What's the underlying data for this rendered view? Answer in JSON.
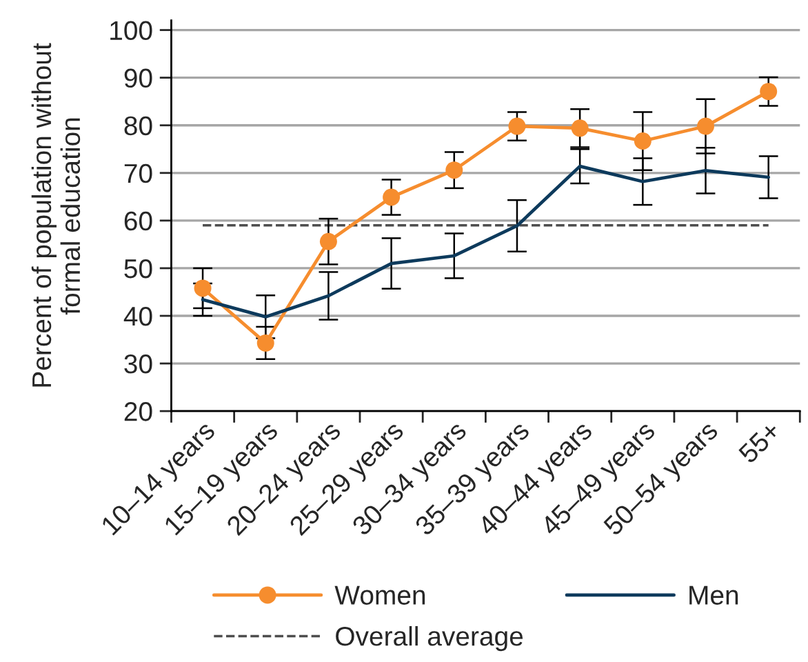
{
  "chart_data": {
    "type": "line",
    "ylabel": "Percent of population without\nformal education",
    "categories": [
      "10–14 years",
      "15–19 years",
      "20–24 years",
      "25–29 years",
      "30–34 years",
      "35–39 years",
      "40–44 years",
      "45–49 years",
      "50–54 years",
      "55+"
    ],
    "series": [
      {
        "name": "Women",
        "color": "#f68d2e",
        "marker": "circle",
        "values": [
          45.8,
          34.3,
          55.6,
          64.9,
          70.6,
          79.8,
          79.4,
          76.7,
          79.8,
          87.1
        ],
        "errors": [
          4.2,
          3.4,
          4.8,
          3.7,
          3.8,
          3.0,
          4.0,
          6.1,
          5.7,
          3.0
        ]
      },
      {
        "name": "Men",
        "color": "#0d3a5c",
        "values": [
          43.4,
          39.8,
          44.2,
          51.0,
          52.6,
          58.9,
          71.4,
          68.2,
          70.5,
          69.1
        ],
        "errors": [
          3.4,
          4.5,
          5.0,
          5.3,
          4.7,
          5.4,
          3.6,
          4.9,
          4.8,
          4.4
        ]
      }
    ],
    "ylim": [
      20,
      102
    ],
    "yticks": [
      20,
      30,
      40,
      50,
      60,
      70,
      80,
      90,
      100
    ],
    "ref_lines": [
      {
        "axis": "y",
        "value": 59,
        "label": "Overall average",
        "color": "#4d4d4d",
        "line_style": "dashed"
      }
    ],
    "grid": "y",
    "legend": "bottom",
    "marker": "none"
  }
}
